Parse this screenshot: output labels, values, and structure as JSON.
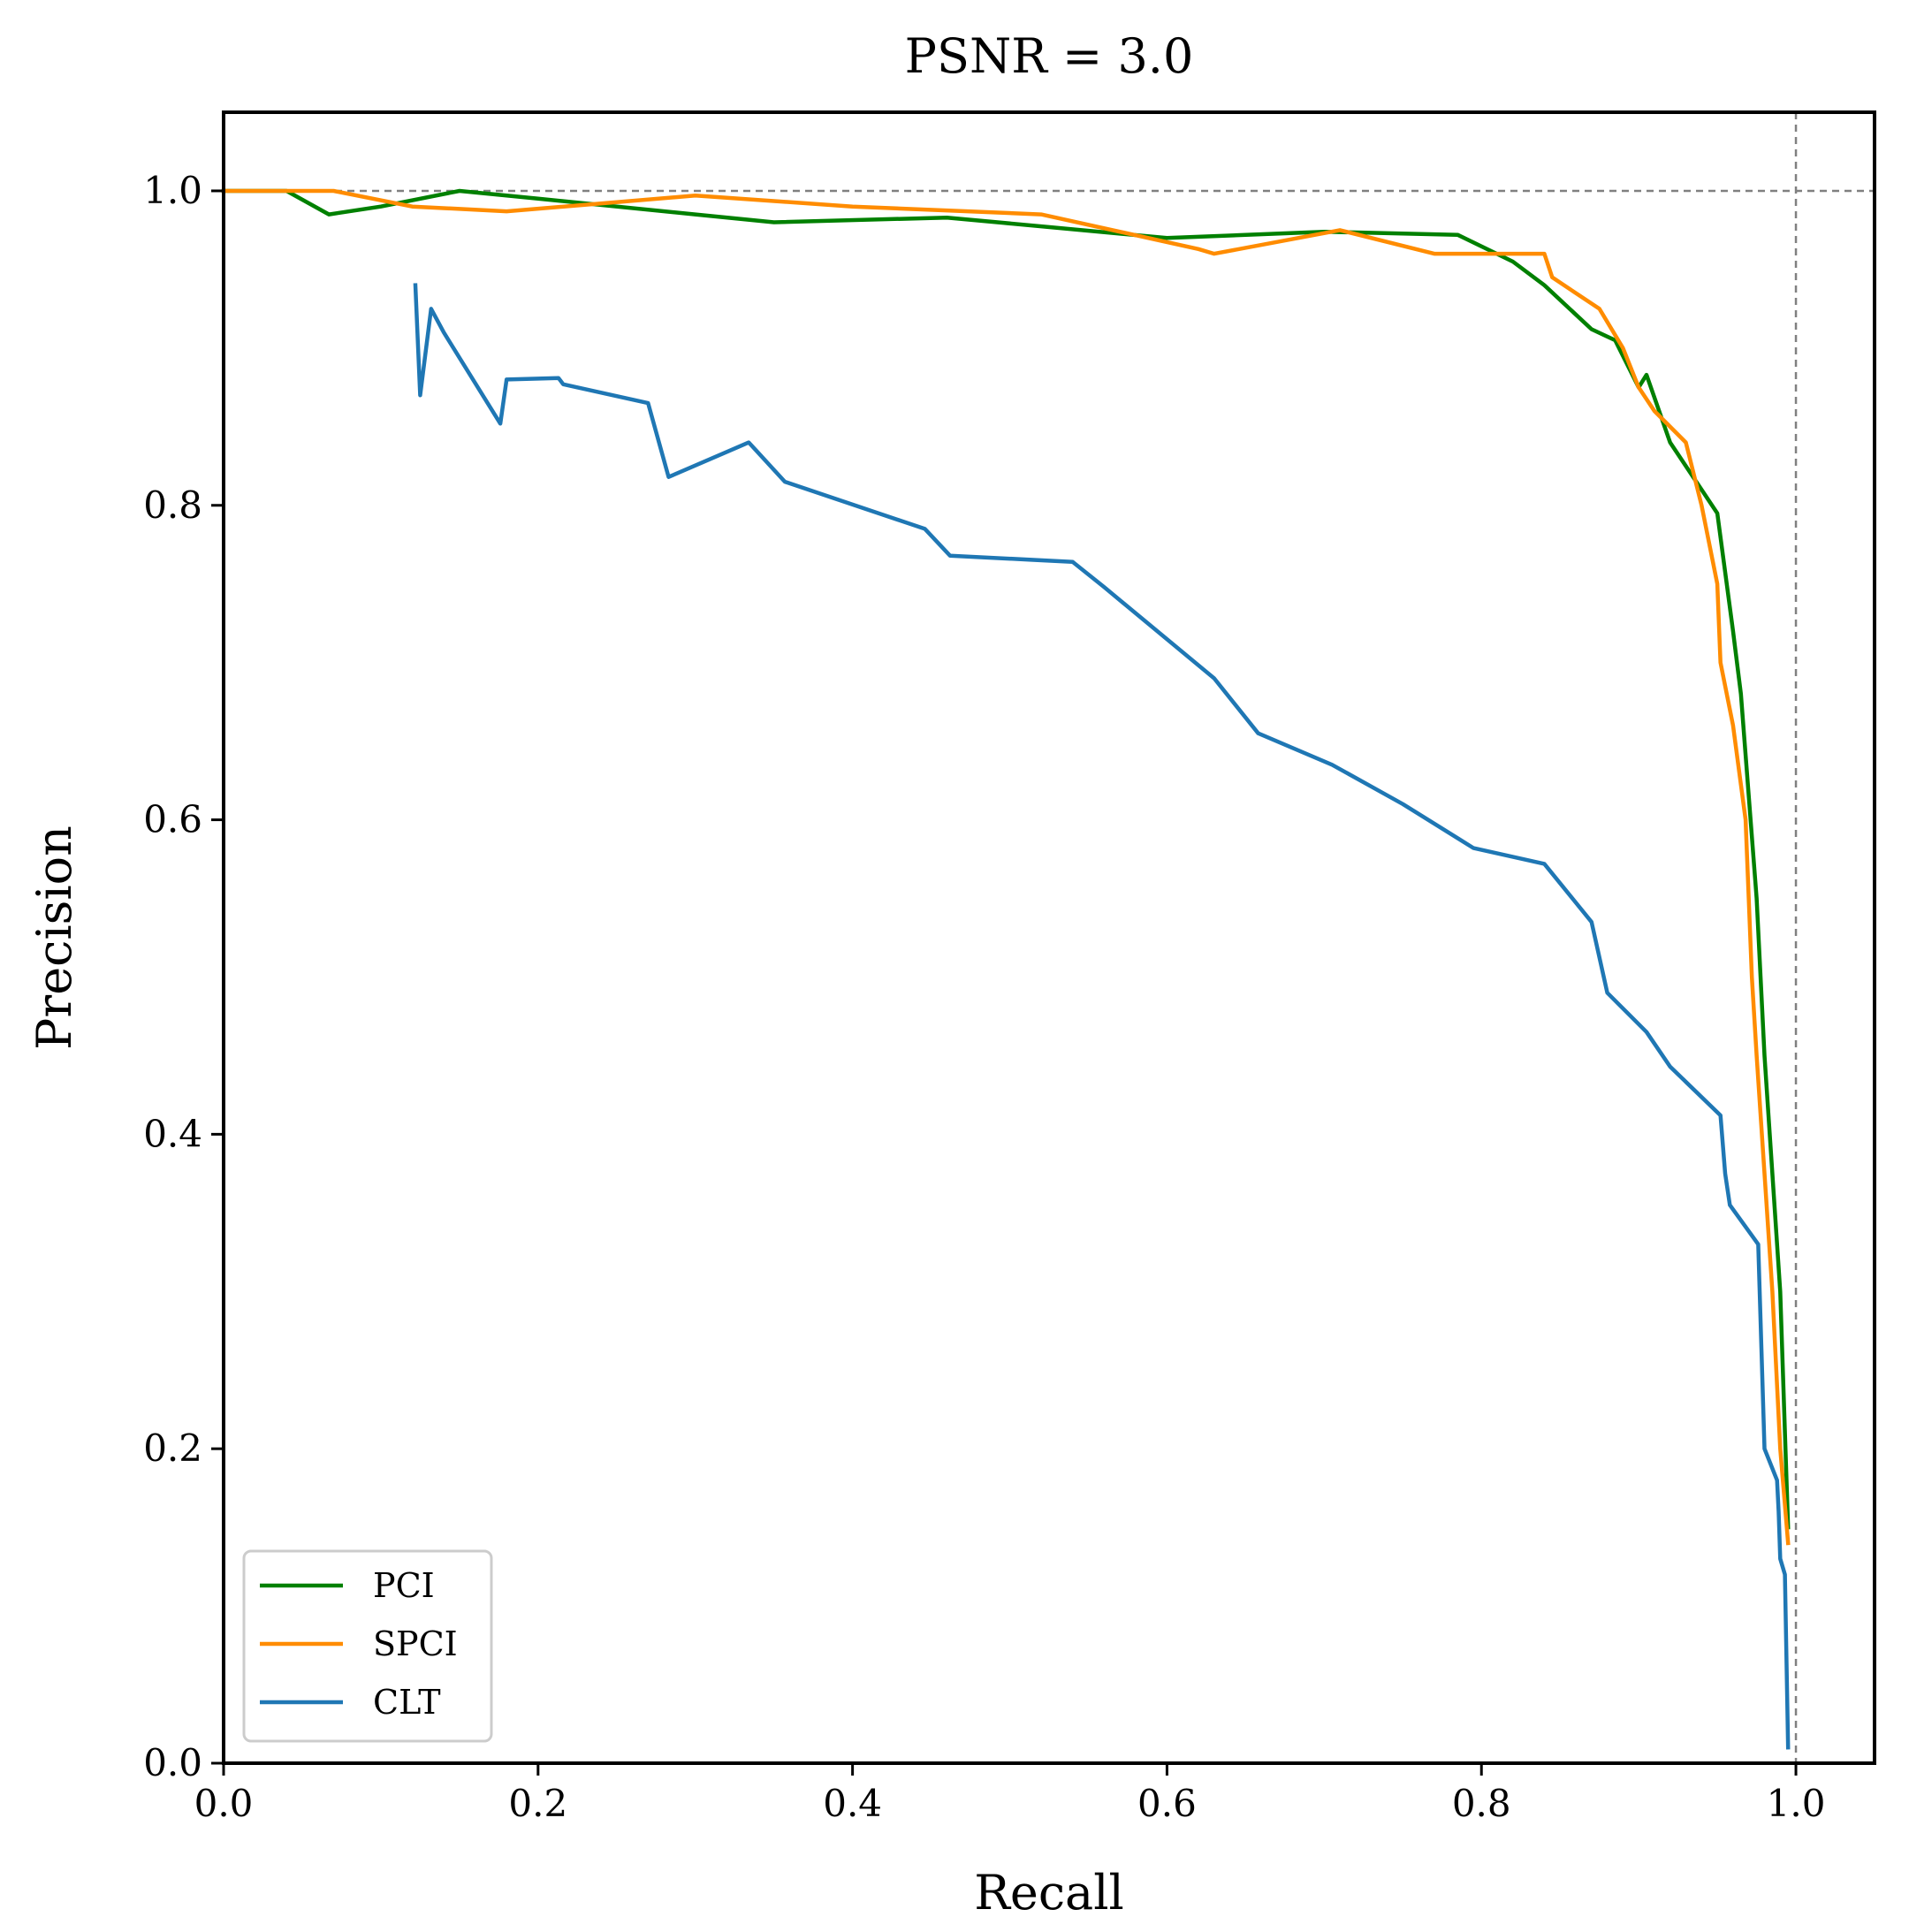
{
  "chart_data": {
    "type": "line",
    "title": "PSNR = 3.0",
    "xlabel": "Recall",
    "ylabel": "Precision",
    "xlim": [
      0.0,
      1.05
    ],
    "ylim": [
      0.0,
      1.05
    ],
    "xticks": [
      "0.0",
      "0.2",
      "0.4",
      "0.6",
      "0.8",
      "1.0"
    ],
    "yticks": [
      "0.0",
      "0.2",
      "0.4",
      "0.6",
      "0.8",
      "1.0"
    ],
    "xtick_values": [
      0.0,
      0.2,
      0.4,
      0.6,
      0.8,
      1.0
    ],
    "ytick_values": [
      0.0,
      0.2,
      0.4,
      0.6,
      0.8,
      1.0
    ],
    "reference_lines": {
      "x": 1.0,
      "y": 1.0
    },
    "legend_position": "lower-left",
    "series": [
      {
        "name": "PCI",
        "color": "#008000",
        "x": [
          0.0,
          0.04,
          0.067,
          0.1,
          0.15,
          0.2,
          0.3,
          0.35,
          0.46,
          0.6,
          0.7,
          0.785,
          0.82,
          0.84,
          0.87,
          0.885,
          0.9,
          0.905,
          0.92,
          0.95,
          0.96,
          0.965,
          0.975,
          0.98,
          0.99,
          0.995
        ],
        "y": [
          1.0,
          1.0,
          0.985,
          0.99,
          1.0,
          0.995,
          0.985,
          0.98,
          0.983,
          0.97,
          0.974,
          0.972,
          0.955,
          0.94,
          0.912,
          0.905,
          0.875,
          0.883,
          0.84,
          0.795,
          0.72,
          0.68,
          0.55,
          0.45,
          0.3,
          0.15
        ]
      },
      {
        "name": "SPCI",
        "color": "#ff8c00",
        "x": [
          0.0,
          0.07,
          0.12,
          0.18,
          0.3,
          0.4,
          0.52,
          0.62,
          0.63,
          0.71,
          0.77,
          0.82,
          0.84,
          0.845,
          0.86,
          0.875,
          0.89,
          0.9,
          0.91,
          0.93,
          0.94,
          0.95,
          0.952,
          0.96,
          0.968,
          0.972,
          0.975,
          0.985,
          0.99,
          0.995
        ],
        "y": [
          1.0,
          1.0,
          0.99,
          0.987,
          0.997,
          0.99,
          0.985,
          0.963,
          0.96,
          0.975,
          0.96,
          0.96,
          0.96,
          0.945,
          0.935,
          0.925,
          0.9,
          0.875,
          0.86,
          0.84,
          0.8,
          0.75,
          0.7,
          0.66,
          0.6,
          0.5,
          0.45,
          0.3,
          0.2,
          0.14
        ]
      },
      {
        "name": "CLT",
        "color": "#1f77b4",
        "x": [
          0.122,
          0.125,
          0.132,
          0.14,
          0.176,
          0.18,
          0.213,
          0.216,
          0.27,
          0.283,
          0.334,
          0.357,
          0.446,
          0.462,
          0.54,
          0.56,
          0.63,
          0.658,
          0.705,
          0.75,
          0.795,
          0.84,
          0.87,
          0.88,
          0.905,
          0.92,
          0.952,
          0.955,
          0.958,
          0.976,
          0.98,
          0.988,
          0.989,
          0.99,
          0.993,
          0.995
        ],
        "y": [
          0.94,
          0.87,
          0.925,
          0.91,
          0.852,
          0.88,
          0.881,
          0.877,
          0.865,
          0.818,
          0.84,
          0.815,
          0.785,
          0.768,
          0.764,
          0.748,
          0.69,
          0.655,
          0.635,
          0.61,
          0.582,
          0.572,
          0.535,
          0.49,
          0.465,
          0.443,
          0.412,
          0.375,
          0.355,
          0.33,
          0.2,
          0.18,
          0.16,
          0.13,
          0.12,
          0.01
        ]
      }
    ]
  }
}
